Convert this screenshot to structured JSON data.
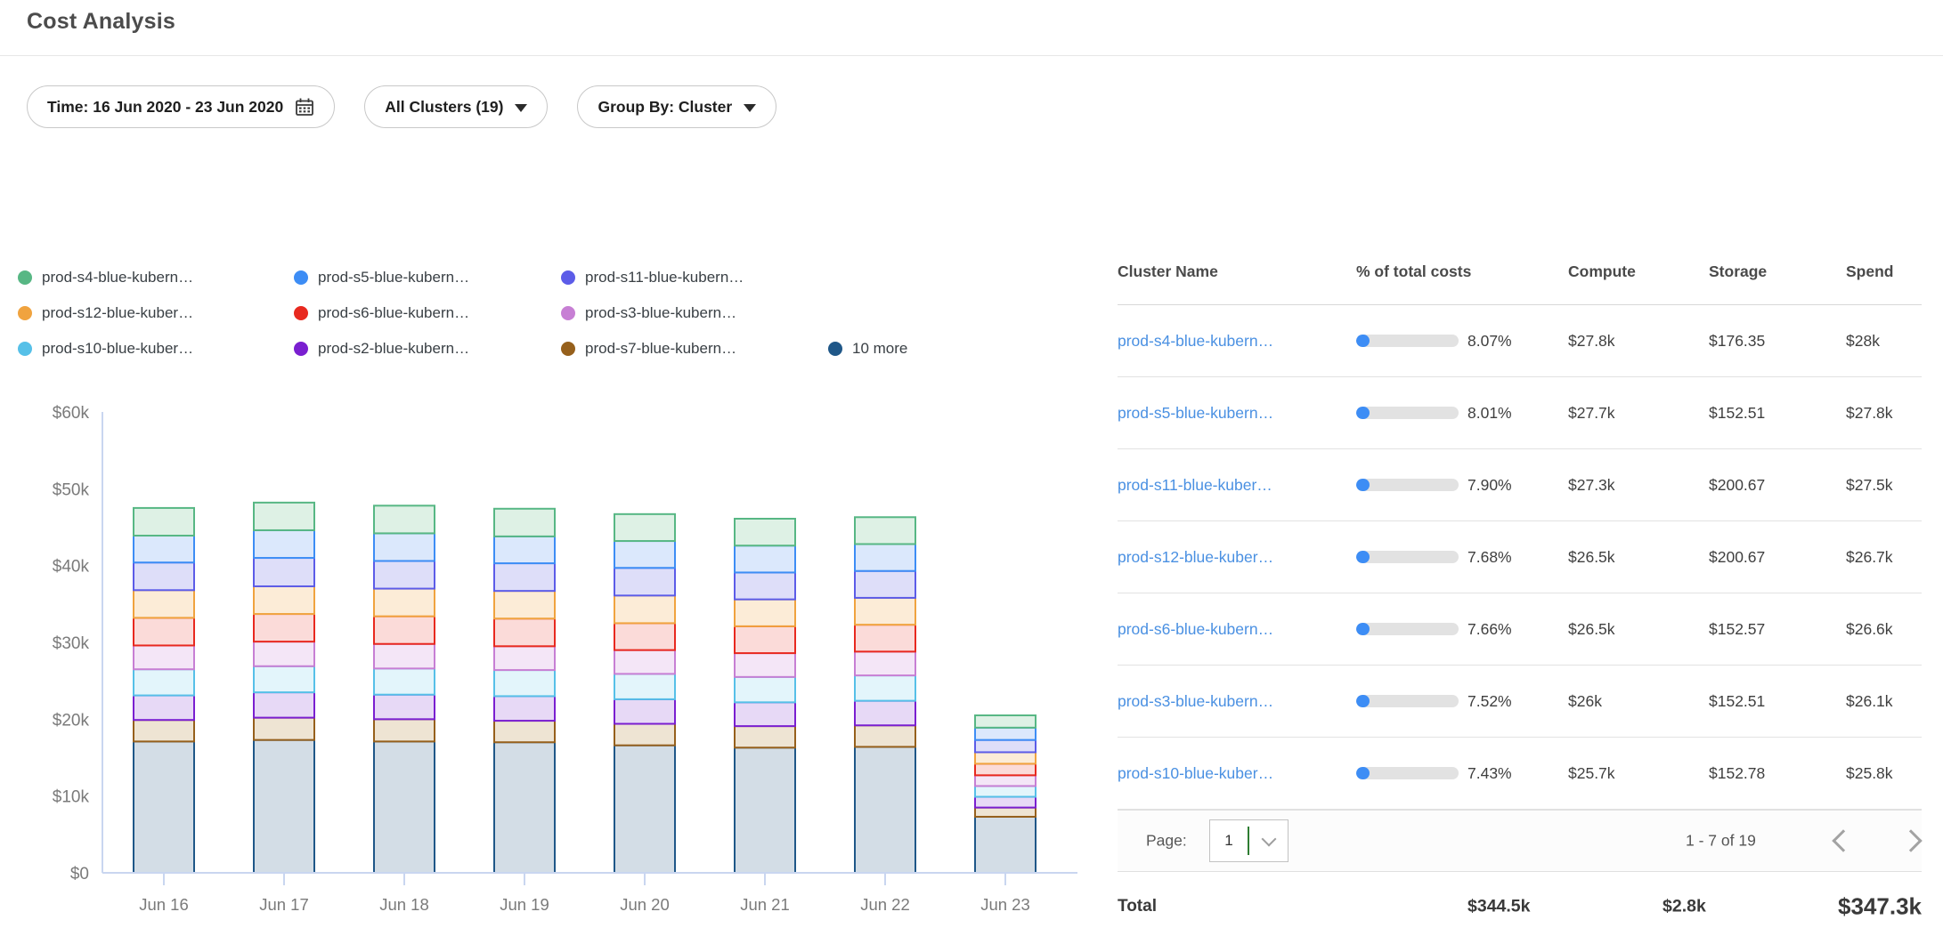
{
  "header": {
    "title": "Cost Analysis"
  },
  "filters": {
    "time": {
      "label": "Time: 16 Jun 2020 - 23 Jun 2020"
    },
    "clusters": {
      "label": "All Clusters (19)"
    },
    "group_by": {
      "label": "Group By: Cluster"
    }
  },
  "chart_data": {
    "type": "bar",
    "stacked": true,
    "x": [
      "Jun 16",
      "Jun 17",
      "Jun 18",
      "Jun 19",
      "Jun 20",
      "Jun 21",
      "Jun 22",
      "Jun 23"
    ],
    "ylim": [
      0,
      60000
    ],
    "ytick_labels": [
      "$0",
      "$10k",
      "$20k",
      "$30k",
      "$40k",
      "$50k",
      "$60k"
    ],
    "unit": "USD thousands (values_k are $k, estimated from gridlines)",
    "legend_position": "top",
    "grid": false,
    "series_bottom_to_top": [
      {
        "name": "10 more",
        "color": "#1f5788",
        "fill": "#d3dde6",
        "values_k": [
          17.1,
          17.3,
          17.1,
          17.0,
          16.6,
          16.3,
          16.4,
          7.3
        ]
      },
      {
        "name": "prod-s7-blue-kubern…",
        "color": "#96601c",
        "fill": "#eee4d3",
        "values_k": [
          2.8,
          2.9,
          2.9,
          2.8,
          2.8,
          2.8,
          2.8,
          1.2
        ]
      },
      {
        "name": "prod-s2-blue-kubern…",
        "color": "#7a1fd0",
        "fill": "#e7d9f6",
        "values_k": [
          3.2,
          3.3,
          3.2,
          3.2,
          3.2,
          3.1,
          3.2,
          1.4
        ]
      },
      {
        "name": "prod-s10-blue-kuber…",
        "color": "#56c0e8",
        "fill": "#e3f5fb",
        "values_k": [
          3.4,
          3.4,
          3.4,
          3.4,
          3.3,
          3.3,
          3.3,
          1.4
        ]
      },
      {
        "name": "prod-s3-blue-kubern…",
        "color": "#c77fd4",
        "fill": "#f4e6f7",
        "values_k": [
          3.1,
          3.2,
          3.2,
          3.1,
          3.1,
          3.1,
          3.1,
          1.4
        ]
      },
      {
        "name": "prod-s6-blue-kubern…",
        "color": "#e8291f",
        "fill": "#fbdbd9",
        "values_k": [
          3.6,
          3.6,
          3.6,
          3.6,
          3.5,
          3.5,
          3.5,
          1.5
        ]
      },
      {
        "name": "prod-s12-blue-kuber…",
        "color": "#f0a33f",
        "fill": "#fcecd7",
        "values_k": [
          3.6,
          3.6,
          3.6,
          3.6,
          3.6,
          3.5,
          3.5,
          1.5
        ]
      },
      {
        "name": "prod-s11-blue-kubern…",
        "color": "#5c5ce8",
        "fill": "#dedef9",
        "values_k": [
          3.6,
          3.7,
          3.6,
          3.6,
          3.6,
          3.5,
          3.5,
          1.6
        ]
      },
      {
        "name": "prod-s5-blue-kubern…",
        "color": "#3d8df5",
        "fill": "#dbe8fc",
        "values_k": [
          3.5,
          3.6,
          3.6,
          3.5,
          3.5,
          3.5,
          3.5,
          1.6
        ]
      },
      {
        "name": "prod-s4-blue-kubern…",
        "color": "#57b784",
        "fill": "#def1e5",
        "values_k": [
          3.6,
          3.6,
          3.6,
          3.6,
          3.5,
          3.5,
          3.5,
          1.6
        ]
      }
    ]
  },
  "table": {
    "columns": [
      "Cluster Name",
      "% of total costs",
      "Compute",
      "Storage",
      "Spend"
    ],
    "rows": [
      {
        "name": "prod-s4-blue-kubern…",
        "pct": "8.07%",
        "compute": "$27.8k",
        "storage": "$176.35",
        "spend": "$28k"
      },
      {
        "name": "prod-s5-blue-kubern…",
        "pct": "8.01%",
        "compute": "$27.7k",
        "storage": "$152.51",
        "spend": "$27.8k"
      },
      {
        "name": "prod-s11-blue-kuber…",
        "pct": "7.90%",
        "compute": "$27.3k",
        "storage": "$200.67",
        "spend": "$27.5k"
      },
      {
        "name": "prod-s12-blue-kuber…",
        "pct": "7.68%",
        "compute": "$26.5k",
        "storage": "$200.67",
        "spend": "$26.7k"
      },
      {
        "name": "prod-s6-blue-kubern…",
        "pct": "7.66%",
        "compute": "$26.5k",
        "storage": "$152.57",
        "spend": "$26.6k"
      },
      {
        "name": "prod-s3-blue-kubern…",
        "pct": "7.52%",
        "compute": "$26k",
        "storage": "$152.51",
        "spend": "$26.1k"
      },
      {
        "name": "prod-s10-blue-kuber…",
        "pct": "7.43%",
        "compute": "$25.7k",
        "storage": "$152.78",
        "spend": "$25.8k"
      }
    ],
    "pagination": {
      "page_label": "Page:",
      "page_value": "1",
      "range": "1 - 7 of 19"
    },
    "total": {
      "label": "Total",
      "compute": "$344.5k",
      "storage": "$2.8k",
      "spend": "$347.3k"
    }
  },
  "colors": {
    "link": "#4a90e2",
    "progress_fill": "#3d8df5",
    "progress_track": "#e2e2e2",
    "axis_line": "#c9d6f0",
    "select_caret_green": "#2e7d32"
  }
}
